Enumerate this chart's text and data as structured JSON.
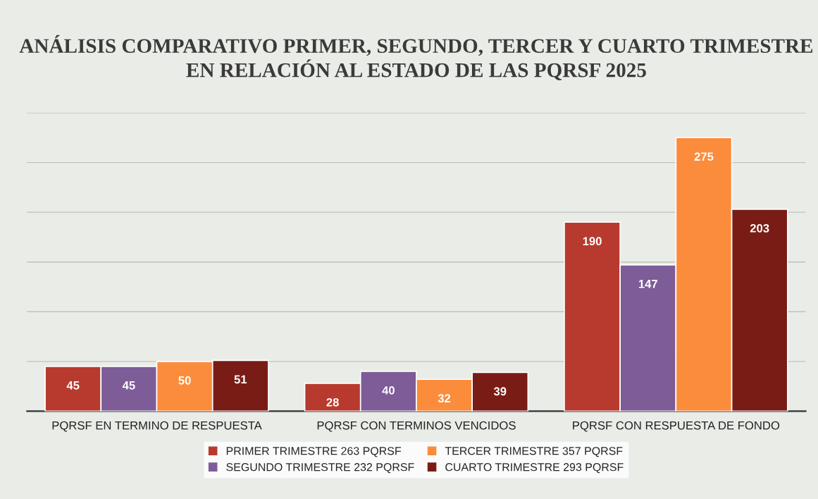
{
  "chart_data": {
    "type": "bar",
    "title": "ANÁLISIS COMPARATIVO PRIMER, SEGUNDO, TERCER Y CUARTO TRIMESTRE EN RELACIÓN AL ESTADO DE LAS PQRSF 2025",
    "categories": [
      "PQRSF EN TERMINO DE RESPUESTA",
      "PQRSF CON TERMINOS VENCIDOS",
      "PQRSF CON RESPUESTA DE FONDO"
    ],
    "series": [
      {
        "name": "PRIMER TRIMESTRE 263 PQRSF",
        "color": "#b83a2e",
        "values": [
          45,
          28,
          190
        ]
      },
      {
        "name": "SEGUNDO TRIMESTRE 232 PQRSF",
        "color": "#7d5c98",
        "values": [
          45,
          40,
          147
        ]
      },
      {
        "name": "TERCER TRIMESTRE 357 PQRSF",
        "color": "#fb8c3c",
        "values": [
          50,
          32,
          275
        ]
      },
      {
        "name": "CUARTO TRIMESTRE 293 PQRSF",
        "color": "#7a1c16",
        "values": [
          51,
          39,
          203
        ]
      }
    ],
    "ylim": [
      0,
      300
    ],
    "yticks": [
      {
        "value": 0,
        "label": null
      },
      {
        "value": 50,
        "label": null
      },
      {
        "value": 100,
        "label": null
      },
      {
        "value": 150,
        "label": null
      },
      {
        "value": 200,
        "label": null
      },
      {
        "value": 250,
        "label": null
      },
      {
        "value": 300,
        "label": null
      }
    ],
    "tick_labels": "x",
    "grid": "y",
    "data_labels": true,
    "legend": "bottom"
  }
}
